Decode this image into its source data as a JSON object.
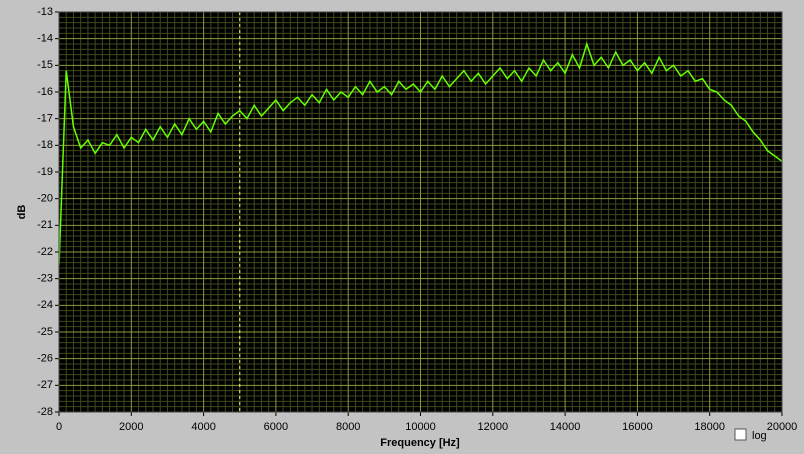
{
  "chart_data": {
    "type": "line",
    "x_label": "Frequency [Hz]",
    "y_label": "dB",
    "log_label": "log",
    "log_scale": false,
    "grid": true,
    "cursor_x": 5000,
    "xlim": [
      0,
      20000
    ],
    "ylim": [
      -28,
      -13
    ],
    "xticks": [
      0,
      2000,
      4000,
      6000,
      8000,
      10000,
      12000,
      14000,
      16000,
      18000,
      20000
    ],
    "yticks": [
      -13,
      -14,
      -15,
      -16,
      -17,
      -18,
      -19,
      -20,
      -21,
      -22,
      -23,
      -24,
      -25,
      -26,
      -27,
      -28
    ],
    "x": [
      0,
      200,
      400,
      600,
      800,
      1000,
      1200,
      1400,
      1600,
      1800,
      2000,
      2200,
      2400,
      2600,
      2800,
      3000,
      3200,
      3400,
      3600,
      3800,
      4000,
      4200,
      4400,
      4600,
      4800,
      5000,
      5200,
      5400,
      5600,
      5800,
      6000,
      6200,
      6400,
      6600,
      6800,
      7000,
      7200,
      7400,
      7600,
      7800,
      8000,
      8200,
      8400,
      8600,
      8800,
      9000,
      9200,
      9400,
      9600,
      9800,
      10000,
      10200,
      10400,
      10600,
      10800,
      11000,
      11200,
      11400,
      11600,
      11800,
      12000,
      12200,
      12400,
      12600,
      12800,
      13000,
      13200,
      13400,
      13600,
      13800,
      14000,
      14200,
      14400,
      14600,
      14800,
      15000,
      15200,
      15400,
      15600,
      15800,
      16000,
      16200,
      16400,
      16600,
      16800,
      17000,
      17200,
      17400,
      17600,
      17800,
      18000,
      18200,
      18400,
      18600,
      18800,
      19000,
      19200,
      19400,
      19600,
      19800,
      20000
    ],
    "series": [
      {
        "color": "#66ff00",
        "values": [
          -22.5,
          -15.2,
          -17.3,
          -18.1,
          -17.8,
          -18.3,
          -17.9,
          -18.0,
          -17.6,
          -18.1,
          -17.7,
          -17.9,
          -17.4,
          -17.8,
          -17.3,
          -17.7,
          -17.2,
          -17.6,
          -17.0,
          -17.4,
          -17.1,
          -17.5,
          -16.8,
          -17.2,
          -16.9,
          -16.7,
          -17.0,
          -16.5,
          -16.9,
          -16.6,
          -16.3,
          -16.7,
          -16.4,
          -16.2,
          -16.5,
          -16.1,
          -16.4,
          -15.9,
          -16.3,
          -16.0,
          -16.2,
          -15.8,
          -16.1,
          -15.6,
          -16.0,
          -15.8,
          -16.1,
          -15.6,
          -15.9,
          -15.7,
          -16.0,
          -15.6,
          -15.9,
          -15.4,
          -15.8,
          -15.5,
          -15.2,
          -15.6,
          -15.3,
          -15.7,
          -15.4,
          -15.1,
          -15.5,
          -15.2,
          -15.6,
          -15.1,
          -15.4,
          -14.8,
          -15.2,
          -14.9,
          -15.3,
          -14.6,
          -15.1,
          -14.2,
          -15.0,
          -14.7,
          -15.1,
          -14.5,
          -15.0,
          -14.8,
          -15.2,
          -14.9,
          -15.3,
          -14.7,
          -15.2,
          -15.0,
          -15.4,
          -15.2,
          -15.6,
          -15.5,
          -15.9,
          -16.0,
          -16.3,
          -16.5,
          -16.9,
          -17.1,
          -17.5,
          -17.8,
          -18.2,
          -18.4,
          -18.6
        ]
      }
    ]
  }
}
